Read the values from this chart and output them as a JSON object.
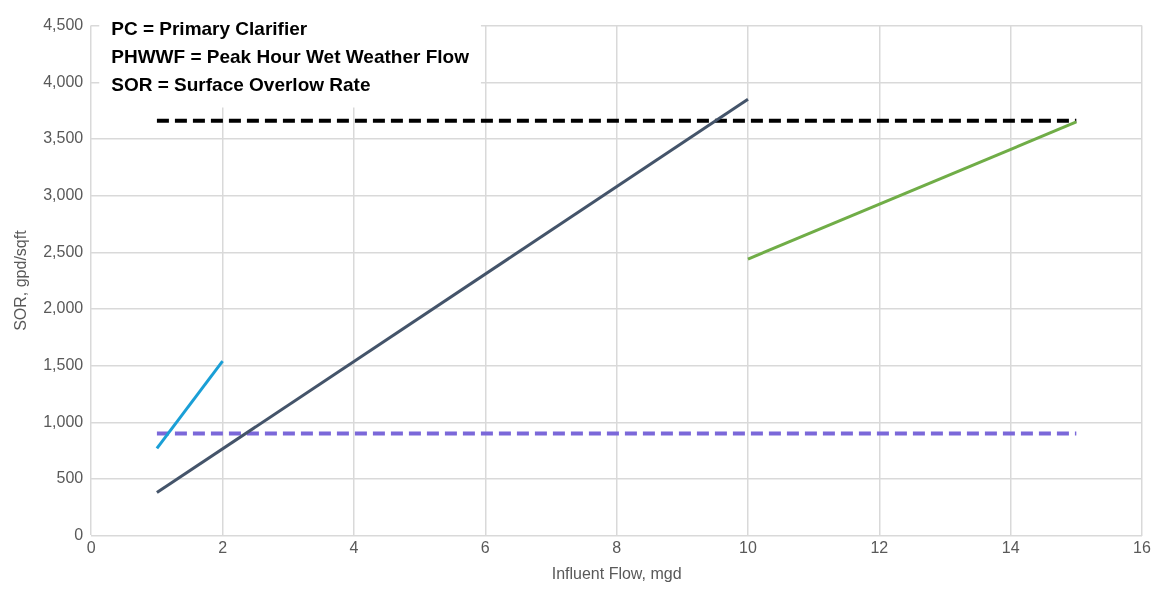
{
  "chart_data": {
    "type": "line",
    "xlabel": "Influent Flow, mgd",
    "ylabel": "SOR, gpd/sqft",
    "annotations": [
      "PC = Primary Clarifier",
      "PHWWF = Peak Hour Wet Weather Flow",
      "SOR = Surface Overlow Rate"
    ],
    "series": [
      {
        "x": [
          1,
          2
        ],
        "values": [
          770,
          1540
        ],
        "color": "#1a9fd6"
      },
      {
        "x": [
          1,
          10
        ],
        "values": [
          380,
          3850
        ],
        "color": "#44546a"
      },
      {
        "x": [
          10,
          15
        ],
        "values": [
          2440,
          3650
        ],
        "color": "#70ad47"
      },
      {
        "x": [
          1,
          15
        ],
        "values": [
          3660,
          3660
        ],
        "color": "#000000",
        "line_style": "dashed"
      },
      {
        "x": [
          1,
          15
        ],
        "values": [
          900,
          900
        ],
        "color": "#7b68d9",
        "line_style": "dashed"
      }
    ],
    "xlim": [
      0,
      16
    ],
    "xticks": [
      0,
      2,
      4,
      6,
      8,
      10,
      12,
      14,
      16
    ],
    "ylim": [
      0,
      4500
    ],
    "yticks": [
      {
        "value": 0,
        "label": "0"
      },
      {
        "value": 500,
        "label": "500"
      },
      {
        "value": 1000,
        "label": "1,000"
      },
      {
        "value": 1500,
        "label": "1,500"
      },
      {
        "value": 2000,
        "label": "2,000"
      },
      {
        "value": 2500,
        "label": "2,500"
      },
      {
        "value": 3000,
        "label": "3,000"
      },
      {
        "value": 3500,
        "label": "3,500"
      },
      {
        "value": 4000,
        "label": "4,000"
      },
      {
        "value": 4500,
        "label": "4,500"
      }
    ],
    "grid": true,
    "legend": false,
    "marker": "none"
  }
}
